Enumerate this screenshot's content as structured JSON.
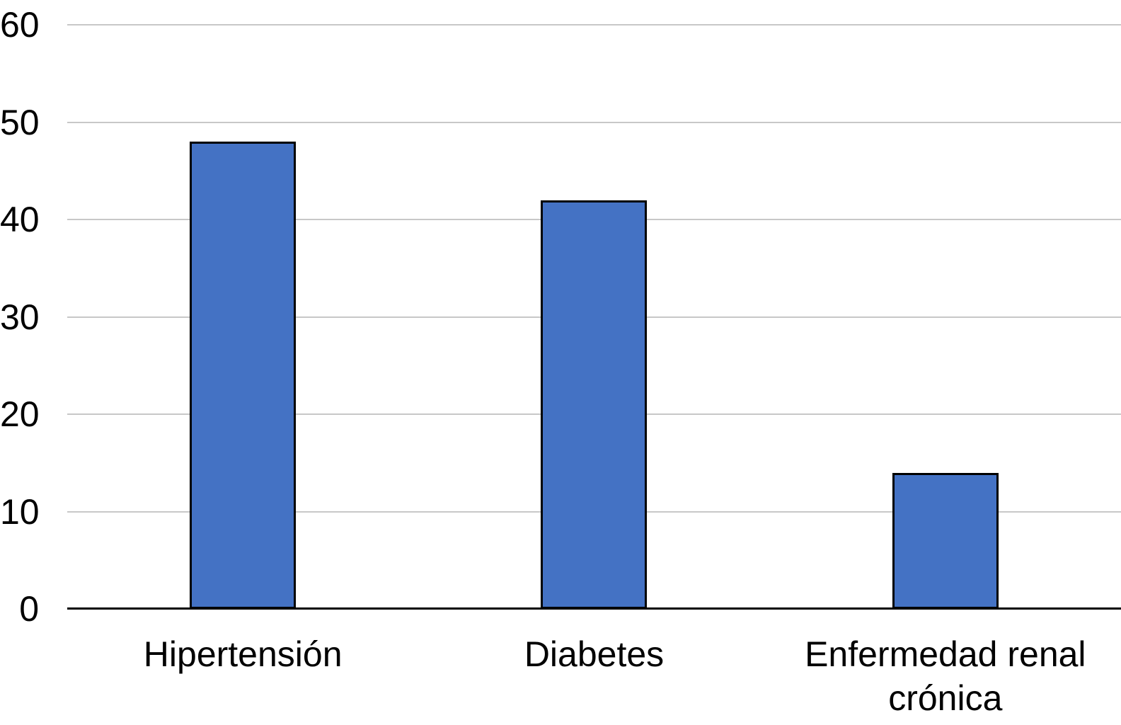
{
  "chart_data": {
    "type": "bar",
    "categories": [
      "Hipertensión",
      "Diabetes",
      "Enfermedad renal crónica"
    ],
    "values": [
      48,
      42,
      14
    ],
    "ylim": [
      0,
      60
    ],
    "yticks": [
      0,
      10,
      20,
      30,
      40,
      50,
      60
    ],
    "grid": true,
    "legend": false,
    "colors": {
      "bar_fill": "#4472C4",
      "bar_border": "#000000",
      "gridline": "#C8C8C8",
      "axis": "#000000",
      "text": "#000000"
    }
  }
}
